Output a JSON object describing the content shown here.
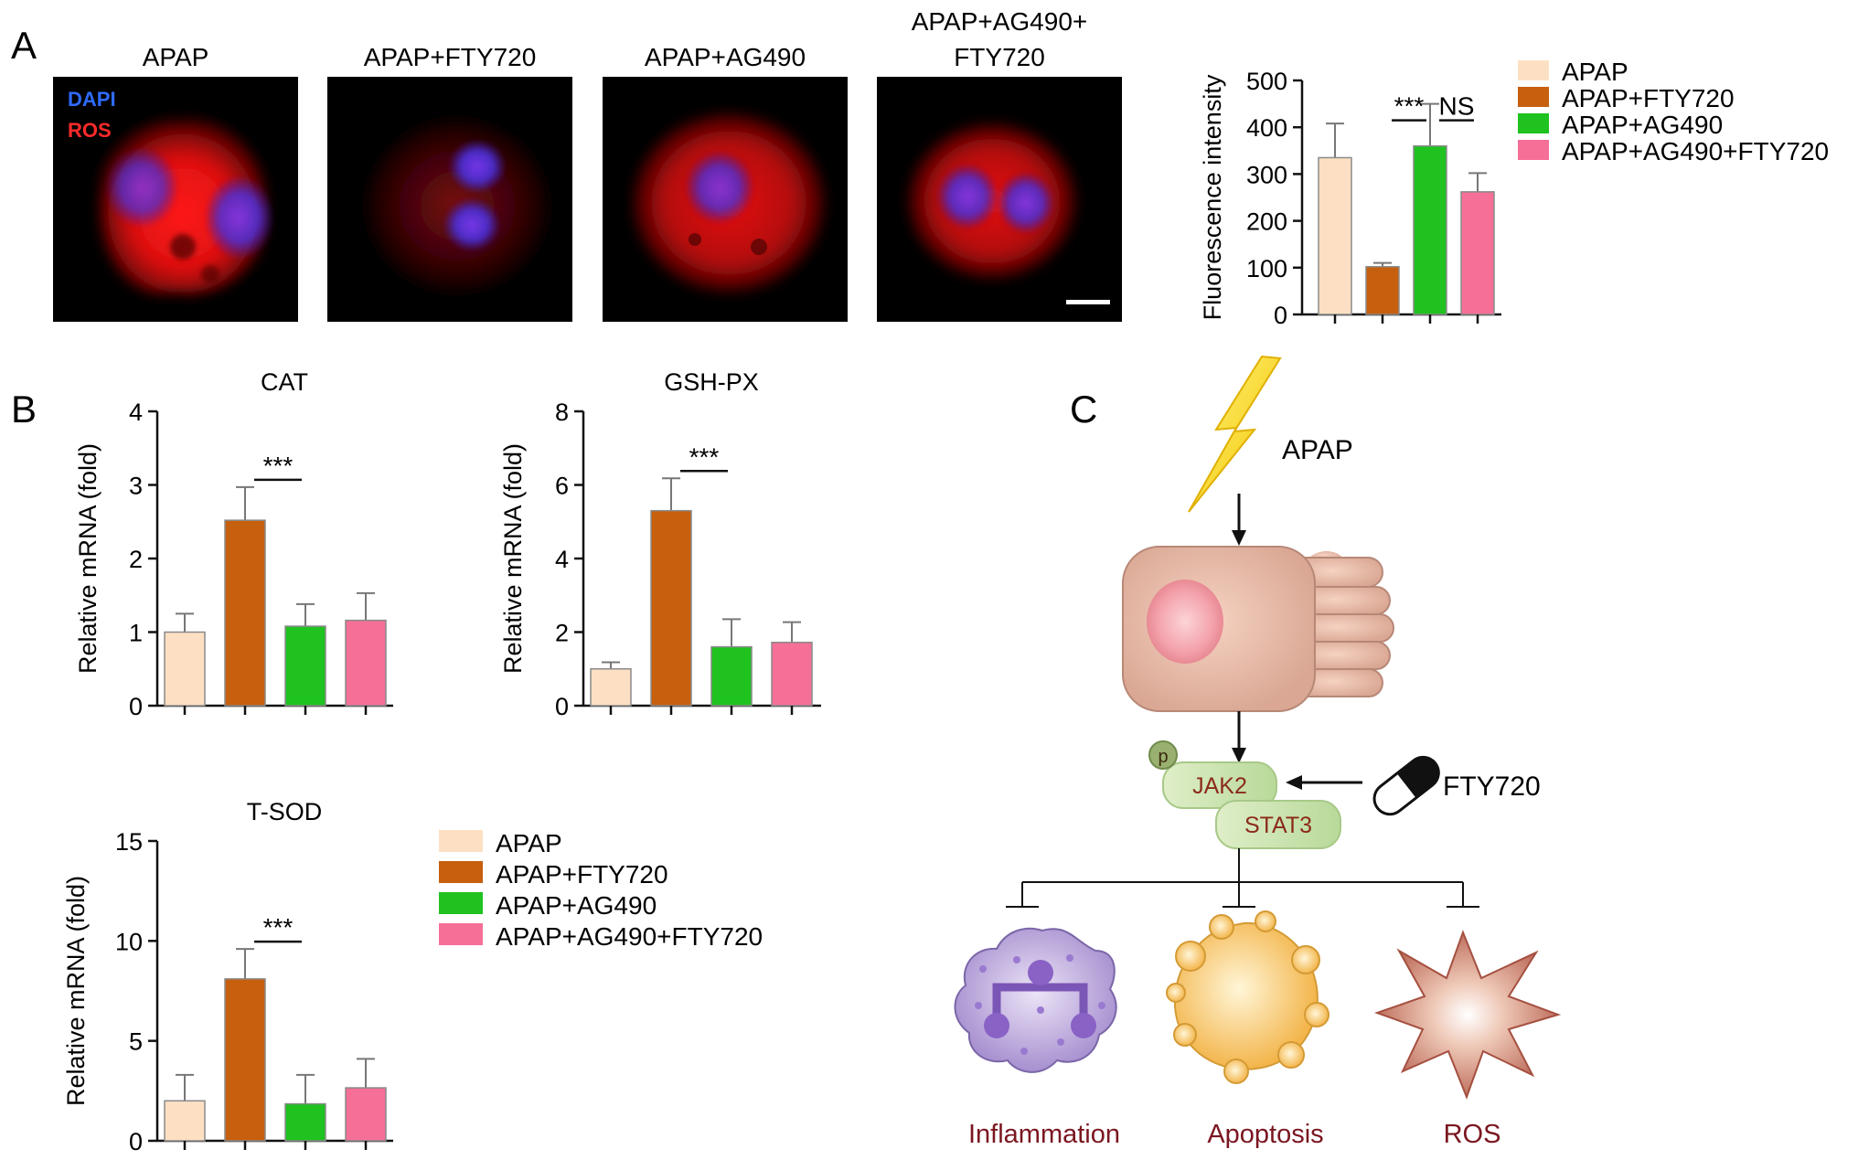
{
  "panels": {
    "a": {
      "letter": "A",
      "micrographs": [
        {
          "title_lines": [
            "APAP"
          ],
          "variant": "bright"
        },
        {
          "title_lines": [
            "APAP+FTY720"
          ],
          "variant": "dim"
        },
        {
          "title_lines": [
            "APAP+AG490"
          ],
          "variant": "medium"
        },
        {
          "title_lines": [
            "APAP+AG490+",
            "FTY720"
          ],
          "variant": "medium2"
        }
      ],
      "stain_labels": [
        {
          "text": "DAPI",
          "color": "#2f6bff"
        },
        {
          "text": "ROS",
          "color": "#ff2a2a"
        }
      ]
    },
    "b": {
      "letter": "B"
    },
    "c": {
      "letter": "C",
      "inducer": "APAP",
      "drug": "FTY720",
      "phospho": "p",
      "proteins": [
        "JAK2",
        "STAT3"
      ],
      "outcomes": [
        "Inflammation",
        "Apoptosis",
        "ROS"
      ]
    }
  },
  "colors": {
    "APAP": "#fde0c3",
    "APAP+FTY720": "#c65f0e",
    "APAP+AG490": "#1fc21f",
    "APAP+AG490+FTY720": "#f56f97",
    "outcome_text": "#7a1620",
    "protein_text": "#8b2a1a"
  },
  "chart_data": [
    {
      "type": "bar",
      "id": "fluorescence",
      "title": "",
      "ylabel": "Fluorescence intensity",
      "ylim": [
        0,
        500
      ],
      "yticks": [
        0,
        100,
        200,
        300,
        400,
        500
      ],
      "categories": [
        "APAP",
        "APAP+FTY720",
        "APAP+AG490",
        "APAP+AG490+FTY720"
      ],
      "values": [
        335,
        102,
        360,
        262
      ],
      "errors": [
        73,
        8,
        90,
        40
      ],
      "significance": [
        {
          "from": 1,
          "to": 2,
          "label": "***"
        },
        {
          "from": 2,
          "to": 3,
          "label": "NS"
        }
      ],
      "legend": {
        "placement": "right",
        "entries": [
          "APAP",
          "APAP+FTY720",
          "APAP+AG490",
          "APAP+AG490+FTY720"
        ]
      }
    },
    {
      "type": "bar",
      "id": "cat",
      "title": "CAT",
      "ylabel": "Relative mRNA (fold)",
      "ylim": [
        0,
        4
      ],
      "yticks": [
        0,
        1,
        2,
        3,
        4
      ],
      "categories": [
        "APAP",
        "APAP+FTY720",
        "APAP+AG490",
        "APAP+AG490+FTY720"
      ],
      "values": [
        1.0,
        2.52,
        1.08,
        1.16
      ],
      "errors": [
        0.25,
        0.45,
        0.3,
        0.37
      ],
      "significance": [
        {
          "from": 1,
          "to": 2,
          "label": "***"
        }
      ]
    },
    {
      "type": "bar",
      "id": "gshpx",
      "title": "GSH-PX",
      "ylabel": "Relative mRNA (fold)",
      "ylim": [
        0,
        8
      ],
      "yticks": [
        0,
        2,
        4,
        6,
        8
      ],
      "categories": [
        "APAP",
        "APAP+FTY720",
        "APAP+AG490",
        "APAP+AG490+FTY720"
      ],
      "values": [
        1.0,
        5.3,
        1.6,
        1.72
      ],
      "errors": [
        0.18,
        0.88,
        0.75,
        0.55
      ],
      "significance": [
        {
          "from": 1,
          "to": 2,
          "label": "***"
        }
      ]
    },
    {
      "type": "bar",
      "id": "tsod",
      "title": "T-SOD",
      "ylabel": "Relative mRNA (fold)",
      "ylim": [
        0,
        15
      ],
      "yticks": [
        0,
        5,
        10,
        15
      ],
      "categories": [
        "APAP",
        "APAP+FTY720",
        "APAP+AG490",
        "APAP+AG490+FTY720"
      ],
      "values": [
        2.0,
        8.1,
        1.85,
        2.65
      ],
      "errors": [
        1.3,
        1.5,
        1.45,
        1.45
      ],
      "significance": [
        {
          "from": 1,
          "to": 2,
          "label": "***"
        }
      ],
      "legend": {
        "placement": "right",
        "entries": [
          "APAP",
          "APAP+FTY720",
          "APAP+AG490",
          "APAP+AG490+FTY720"
        ]
      }
    }
  ]
}
